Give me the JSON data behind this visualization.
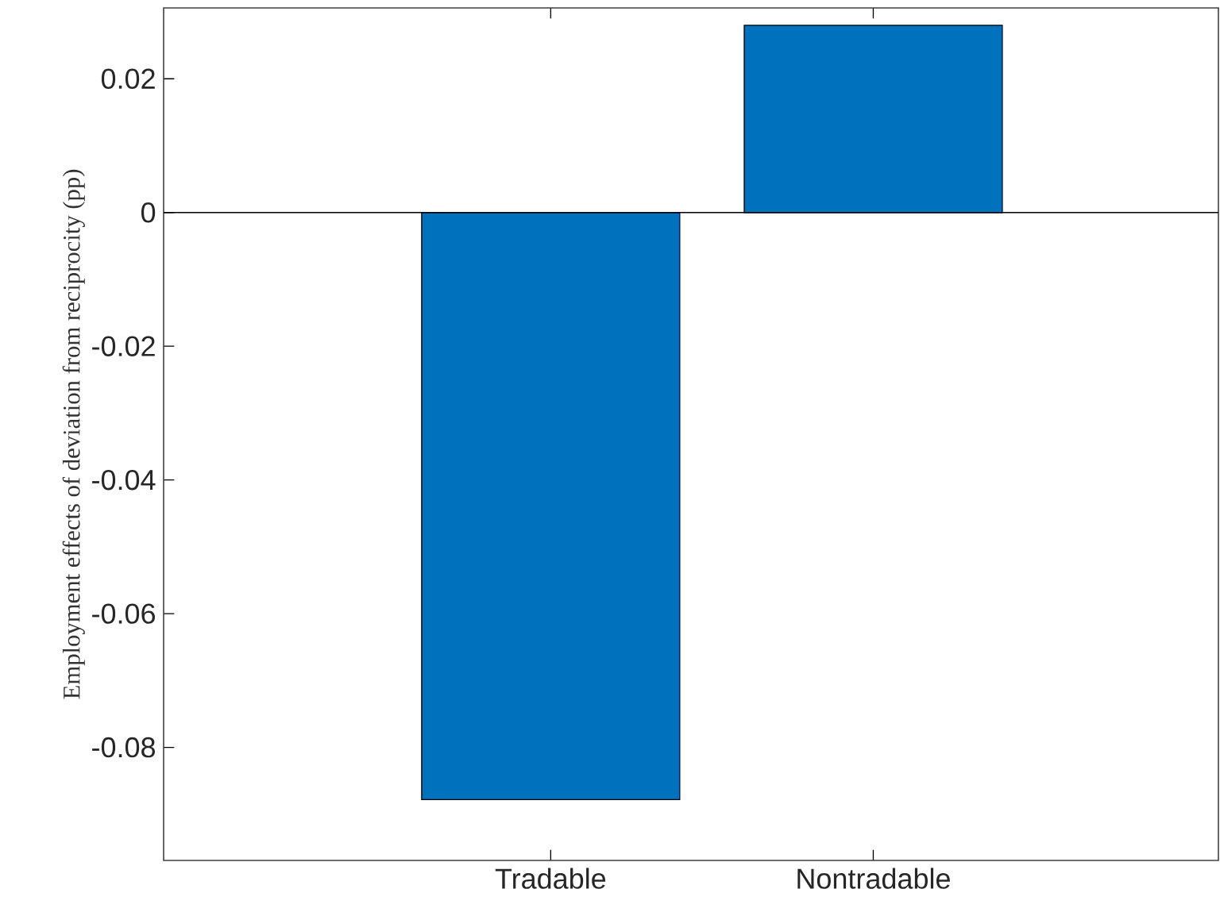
{
  "chart_data": {
    "type": "bar",
    "ylabel": "Employment effects of deviation from reciprocity (pp)",
    "categories": [
      "Tradable",
      "Nontradable"
    ],
    "values": [
      -0.0878,
      0.028
    ],
    "color": "#0072bd",
    "ylim": [
      -0.0969,
      0.0306
    ],
    "yticks": [
      -0.08,
      -0.06,
      -0.04,
      -0.02,
      0,
      0.02
    ],
    "ref_lines": [
      {
        "axis": "y",
        "value": 0
      }
    ],
    "grid": false
  }
}
